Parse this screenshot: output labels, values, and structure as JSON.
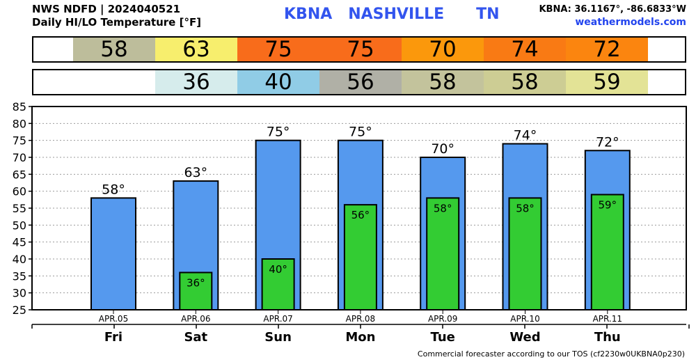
{
  "header": {
    "line1": "NWS NDFD | 2024040521",
    "line2": "Daily HI/LO Temperature [°F]",
    "station": "KBNA   NASHVILLE      TN",
    "coords": "KBNA: 36.1167°, -86.6833°W",
    "site": "weathermodels.com"
  },
  "footer": "Commercial forecaster according to our TOS (cf2230w0UKBNA0p230)",
  "strips": {
    "hi": [
      {
        "value": "58",
        "color": "#bdbd9b"
      },
      {
        "value": "63",
        "color": "#f7ee6d"
      },
      {
        "value": "75",
        "color": "#f86c1b"
      },
      {
        "value": "75",
        "color": "#f86c1b"
      },
      {
        "value": "70",
        "color": "#fb980c"
      },
      {
        "value": "74",
        "color": "#f97a14"
      },
      {
        "value": "72",
        "color": "#fb850f"
      }
    ],
    "lo": [
      {
        "value": "",
        "color": "#ffffff"
      },
      {
        "value": "36",
        "color": "#d6ecec"
      },
      {
        "value": "40",
        "color": "#90cce6"
      },
      {
        "value": "56",
        "color": "#b0b0a6"
      },
      {
        "value": "58",
        "color": "#c3c39c"
      },
      {
        "value": "58",
        "color": "#cdcd94"
      },
      {
        "value": "59",
        "color": "#e3e396"
      }
    ]
  },
  "chart_data": {
    "type": "bar",
    "dates": [
      "APR.05",
      "APR.06",
      "APR.07",
      "APR.08",
      "APR.09",
      "APR.10",
      "APR.11"
    ],
    "days": [
      "Fri",
      "Sat",
      "Sun",
      "Mon",
      "Tue",
      "Wed",
      "Thu"
    ],
    "series": [
      {
        "values": [
          58,
          63,
          75,
          75,
          70,
          74,
          72
        ],
        "color": "#5599ee"
      },
      {
        "values": [
          null,
          36,
          40,
          56,
          58,
          58,
          59
        ],
        "color": "#33cc33"
      }
    ],
    "ylim": [
      25,
      85
    ],
    "yticks": [
      25,
      30,
      35,
      40,
      45,
      50,
      55,
      60,
      65,
      70,
      75,
      80,
      85
    ],
    "grid": true
  }
}
